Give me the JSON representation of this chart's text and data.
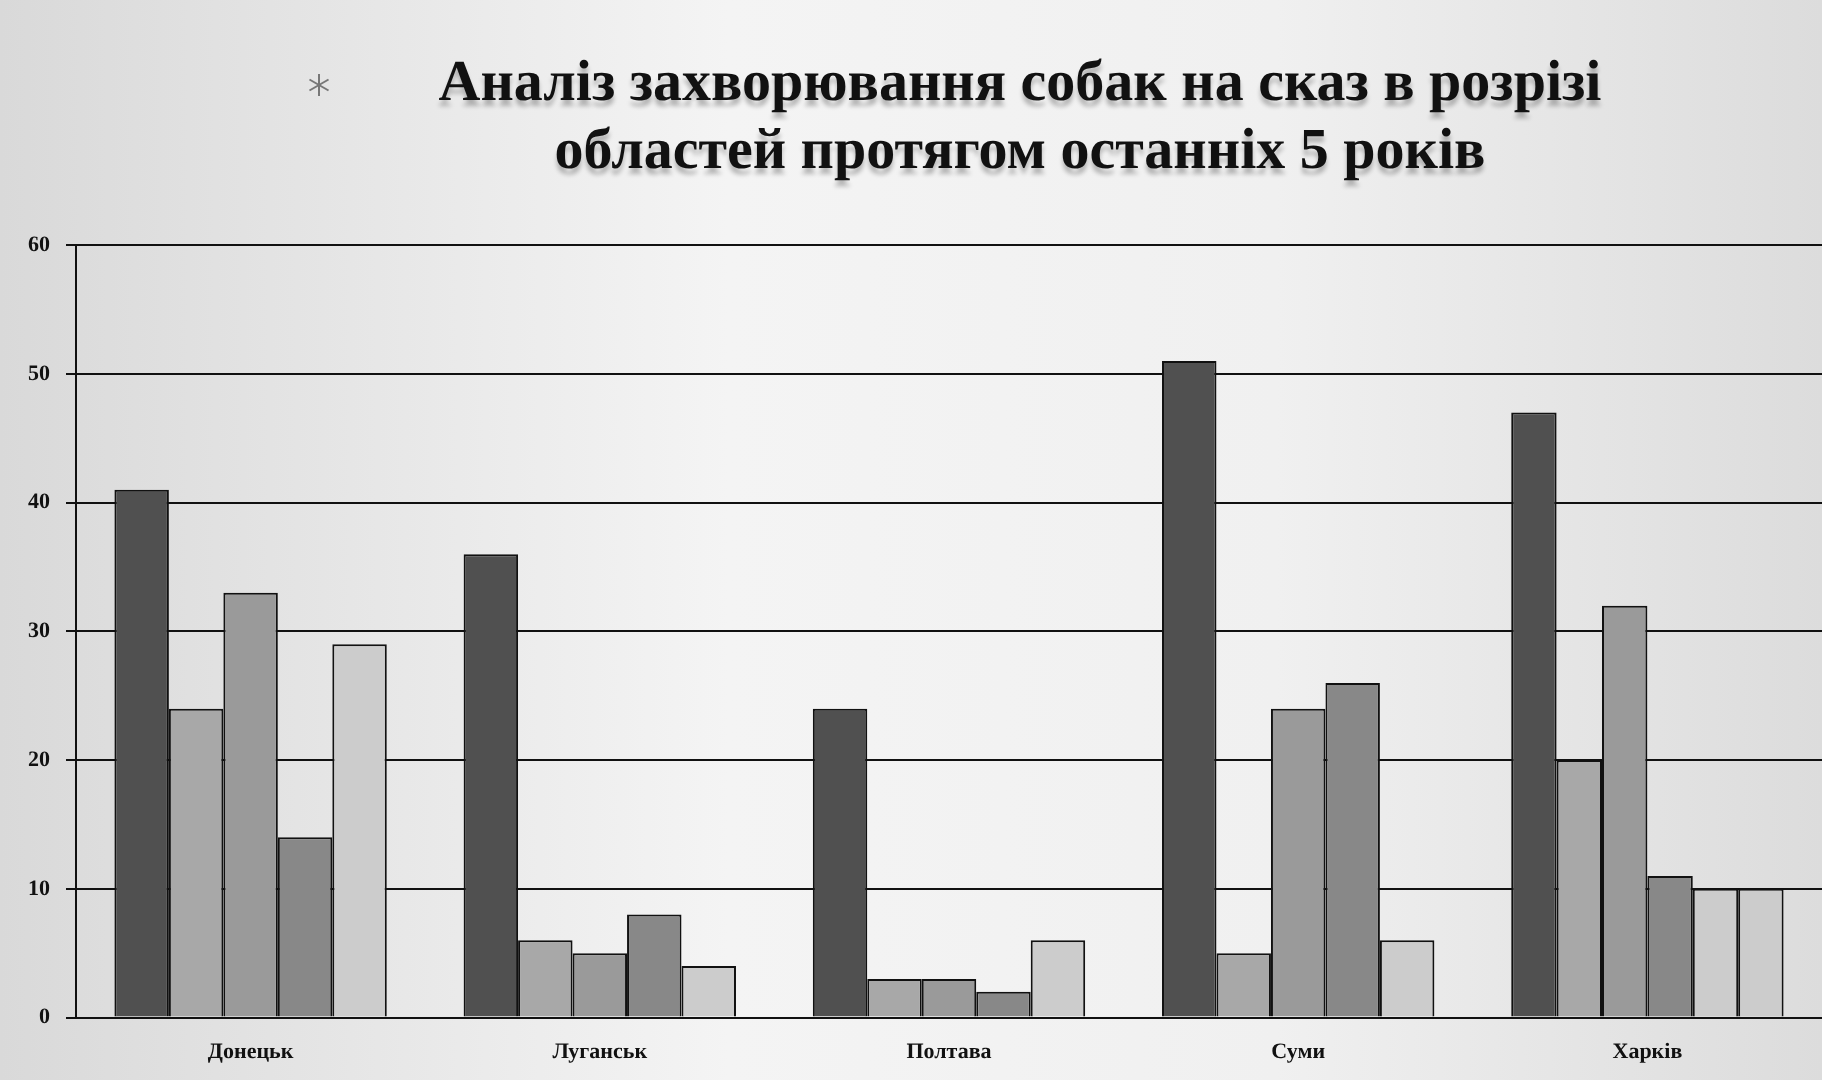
{
  "chart_data": {
    "type": "bar",
    "title": "Аналіз захворювання собак на сказ в розрізі областей протягом останніх 5 років",
    "categories": [
      "Донецьк",
      "Луганськ",
      "Полтава",
      "Суми",
      "Харків"
    ],
    "series": [
      {
        "color": "#505050",
        "values": [
          41,
          36,
          24,
          51,
          47
        ]
      },
      {
        "color": "#a8a8a8",
        "values": [
          24,
          6,
          3,
          5,
          20
        ]
      },
      {
        "color": "#9a9a9a",
        "values": [
          33,
          5,
          3,
          24,
          32
        ]
      },
      {
        "color": "#888888",
        "values": [
          14,
          8,
          2,
          26,
          11
        ]
      },
      {
        "color": "#cccccc",
        "values": [
          29,
          4,
          6,
          6,
          10
        ]
      },
      {
        "color": "#cccccc",
        "values": [
          null,
          null,
          null,
          null,
          10
        ]
      }
    ],
    "ylim": [
      0,
      60
    ],
    "yticks": [
      0,
      10,
      20,
      30,
      40,
      50,
      60
    ],
    "grid": "y",
    "legend": false
  }
}
